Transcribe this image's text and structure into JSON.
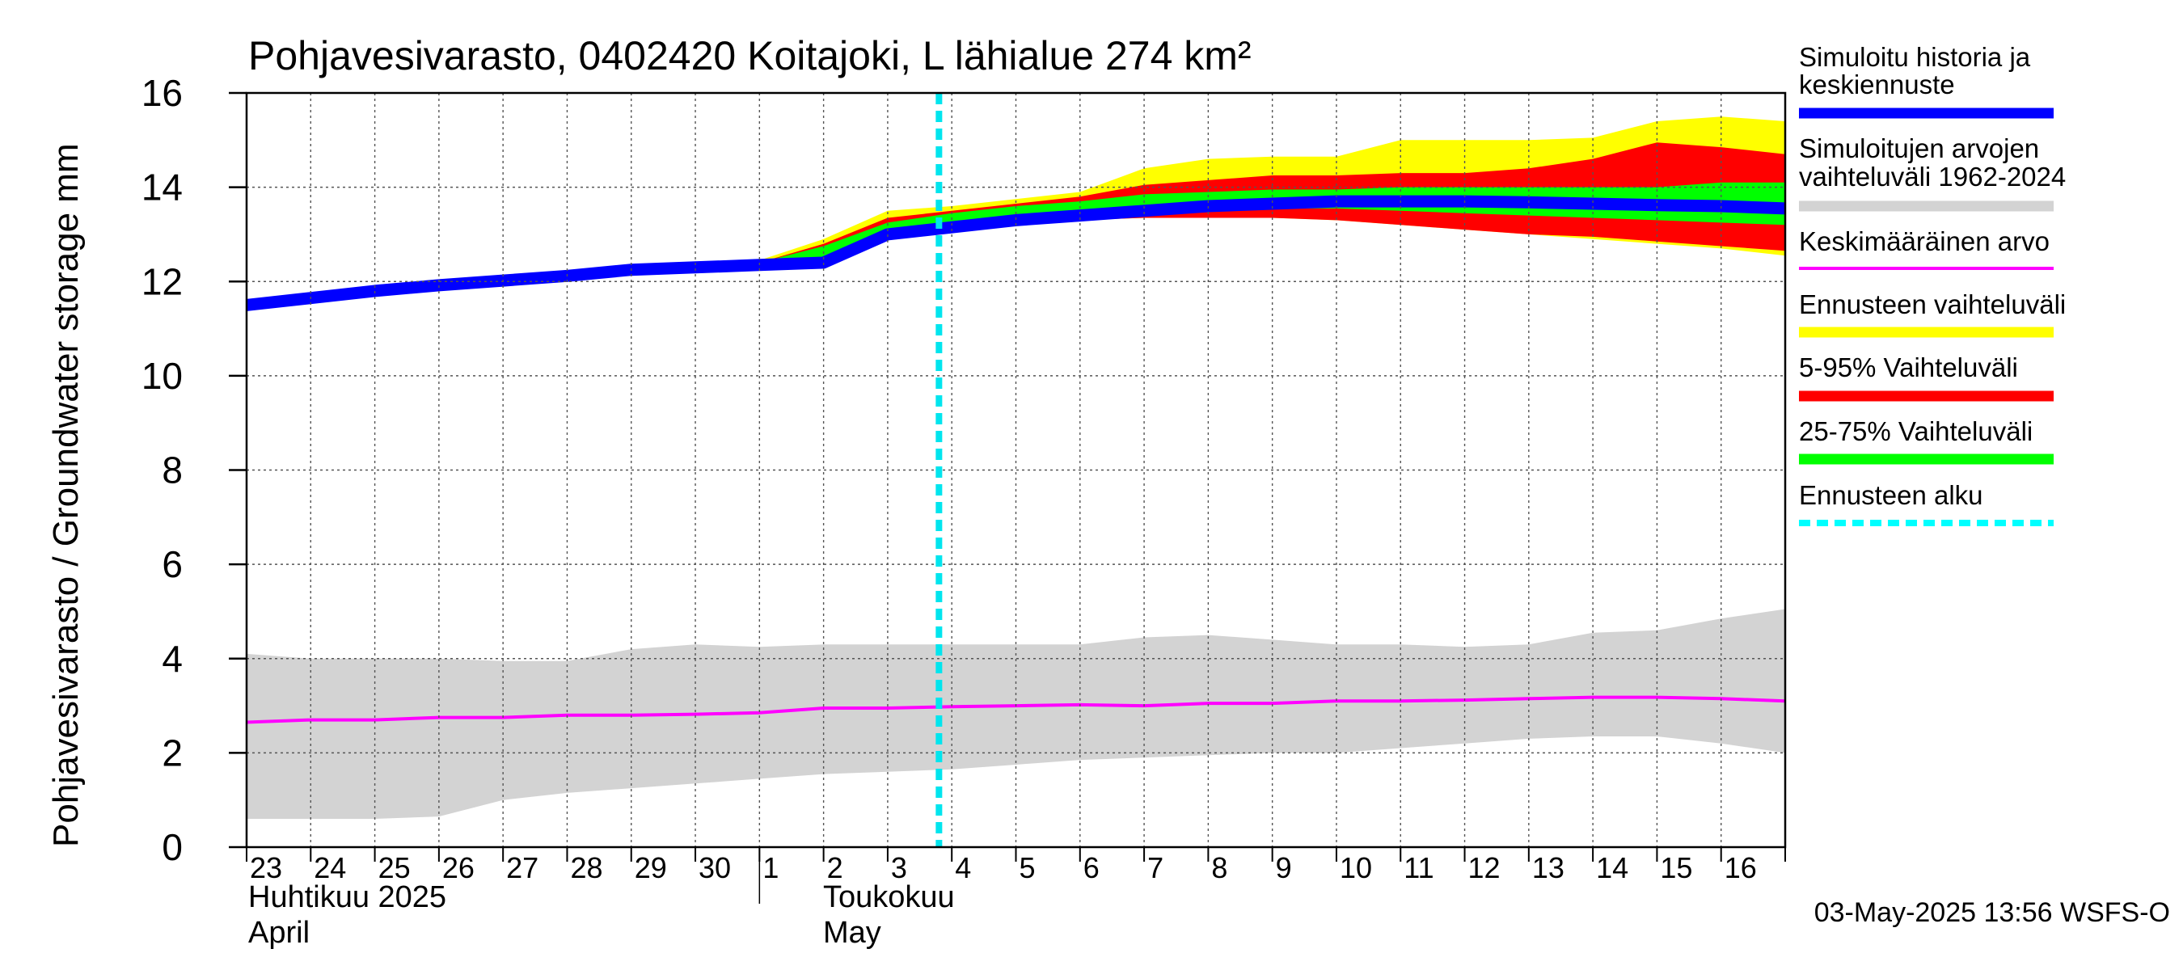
{
  "chart_data": {
    "type": "area",
    "title": "Pohjavesivarasto, 0402420 Koitajoki, L lähialue 274 km²",
    "ylabel": "Pohjavesivarasto / Groundwater storage   mm",
    "ylim": [
      0,
      16
    ],
    "y_ticks": [
      "0",
      "2",
      "4",
      "6",
      "8",
      "10",
      "12",
      "14",
      "16"
    ],
    "x_day_labels": [
      "23",
      "24",
      "25",
      "26",
      "27",
      "28",
      "29",
      "30",
      "1",
      "2",
      "3",
      "4",
      "5",
      "6",
      "7",
      "8",
      "9",
      "10",
      "11",
      "12",
      "13",
      "14",
      "15",
      "16"
    ],
    "month_labels": [
      {
        "line1": "Huhtikuu  2025",
        "line2": "April"
      },
      {
        "line1": "Toukokuu",
        "line2": "May"
      }
    ],
    "footer": "03-May-2025 13:56 WSFS-O",
    "grid": true,
    "legend_position": "right",
    "forecast_start_day": 10.8,
    "legend": [
      {
        "label": "Simuloitu historia ja keskiennuste",
        "color": "#0000ff",
        "style": "thick"
      },
      {
        "label": "Simuloitujen arvojen vaihteluväli 1962-2024",
        "color": "#d3d3d3",
        "style": "thick"
      },
      {
        "label": "Keskimääräinen arvo",
        "color": "#ff00ff",
        "style": "thin"
      },
      {
        "label": "Ennusteen vaihteluväli",
        "color": "#ffff00",
        "style": "thick"
      },
      {
        "label": "5-95% Vaihteluväli",
        "color": "#ff0000",
        "style": "thick"
      },
      {
        "label": "25-75% Vaihteluväli",
        "color": "#00ff00",
        "style": "thick"
      },
      {
        "label": "Ennusteen alku",
        "color": "#00ffff",
        "style": "dashed"
      }
    ],
    "x_days": [
      0,
      1,
      2,
      3,
      4,
      5,
      6,
      7,
      8,
      9,
      10,
      11,
      12,
      13,
      14,
      15,
      16,
      17,
      18,
      19,
      20,
      21,
      22,
      23,
      24
    ],
    "series": [
      {
        "key": "hist_max",
        "values": [
          4.1,
          4.0,
          4.0,
          4.0,
          3.95,
          3.95,
          4.2,
          4.3,
          4.25,
          4.3,
          4.3,
          4.3,
          4.3,
          4.3,
          4.45,
          4.5,
          4.4,
          4.3,
          4.3,
          4.25,
          4.3,
          4.55,
          4.6,
          4.85,
          5.05
        ]
      },
      {
        "key": "hist_min",
        "values": [
          0.6,
          0.6,
          0.6,
          0.65,
          1.0,
          1.15,
          1.25,
          1.35,
          1.45,
          1.55,
          1.6,
          1.65,
          1.75,
          1.85,
          1.9,
          1.95,
          2.0,
          2.0,
          2.1,
          2.2,
          2.3,
          2.35,
          2.35,
          2.2,
          2.0
        ]
      },
      {
        "key": "hist_mean",
        "values": [
          2.65,
          2.7,
          2.7,
          2.75,
          2.75,
          2.8,
          2.8,
          2.82,
          2.85,
          2.95,
          2.95,
          2.98,
          3.0,
          3.02,
          3.0,
          3.05,
          3.05,
          3.1,
          3.1,
          3.12,
          3.15,
          3.18,
          3.18,
          3.15,
          3.1
        ]
      },
      {
        "key": "forecast_max",
        "values": [
          null,
          null,
          null,
          null,
          null,
          null,
          null,
          null,
          12.45,
          12.9,
          13.5,
          13.6,
          13.75,
          13.9,
          14.4,
          14.6,
          14.65,
          14.65,
          15.0,
          15.0,
          15.0,
          15.05,
          15.4,
          15.5,
          15.4
        ]
      },
      {
        "key": "p95",
        "values": [
          null,
          null,
          null,
          null,
          null,
          null,
          null,
          null,
          12.4,
          12.8,
          13.35,
          13.5,
          13.65,
          13.8,
          14.05,
          14.15,
          14.25,
          14.25,
          14.3,
          14.3,
          14.4,
          14.6,
          14.95,
          14.85,
          14.7
        ]
      },
      {
        "key": "p75",
        "values": [
          null,
          null,
          null,
          null,
          null,
          null,
          null,
          null,
          12.4,
          12.75,
          13.25,
          13.45,
          13.6,
          13.7,
          13.85,
          13.9,
          13.95,
          13.95,
          14.0,
          14.0,
          14.0,
          14.0,
          14.0,
          14.1,
          14.1
        ]
      },
      {
        "key": "p25",
        "values": [
          null,
          null,
          null,
          null,
          null,
          null,
          null,
          null,
          12.35,
          12.4,
          13.0,
          13.1,
          13.3,
          13.4,
          13.5,
          13.55,
          13.55,
          13.55,
          13.5,
          13.45,
          13.4,
          13.35,
          13.3,
          13.25,
          13.2
        ]
      },
      {
        "key": "p5",
        "values": [
          null,
          null,
          null,
          null,
          null,
          null,
          null,
          null,
          12.35,
          12.35,
          12.9,
          13.05,
          13.2,
          13.3,
          13.35,
          13.35,
          13.35,
          13.3,
          13.2,
          13.1,
          13.0,
          12.95,
          12.85,
          12.75,
          12.65
        ]
      },
      {
        "key": "forecast_min",
        "values": [
          null,
          null,
          null,
          null,
          null,
          null,
          null,
          null,
          12.35,
          12.35,
          12.9,
          13.05,
          13.2,
          13.3,
          13.35,
          13.35,
          13.35,
          13.3,
          13.2,
          13.1,
          13.0,
          12.9,
          12.8,
          12.7,
          12.55
        ]
      },
      {
        "key": "median",
        "values": [
          11.5,
          11.65,
          11.8,
          11.92,
          12.02,
          12.12,
          12.25,
          12.3,
          12.35,
          12.4,
          13.0,
          13.15,
          13.3,
          13.4,
          13.5,
          13.6,
          13.65,
          13.7,
          13.7,
          13.7,
          13.68,
          13.65,
          13.62,
          13.6,
          13.55
        ]
      }
    ]
  }
}
